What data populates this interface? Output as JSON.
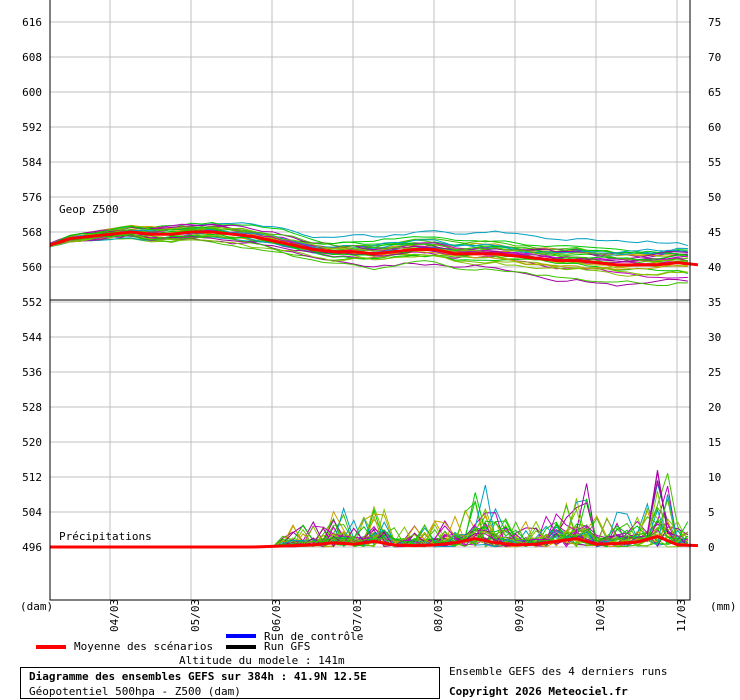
{
  "chart_data": {
    "type": "line",
    "left_axis_ticks": [
      616,
      608,
      600,
      592,
      584,
      576,
      568,
      560,
      552,
      544,
      536,
      528,
      520,
      512,
      504,
      496
    ],
    "right_axis_ticks": [
      75,
      70,
      65,
      60,
      55,
      50,
      45,
      40,
      35,
      30,
      25,
      20,
      15,
      10,
      5,
      0
    ],
    "left_unit": "(dam)",
    "right_unit": "(mm)",
    "x_ticks": [
      "04/03",
      "05/03",
      "06/03",
      "07/03",
      "08/03",
      "09/03",
      "10/03",
      "11/03"
    ],
    "geop_label": "Geop Z500",
    "precip_label": "Précipitations",
    "geop_ylim": [
      490,
      620
    ],
    "precip_ylim": [
      0,
      35
    ],
    "mean_z500": {
      "name": "Moyenne des scénarios",
      "x": [
        0,
        0.5,
        1,
        1.5,
        2,
        2.5,
        3,
        3.5,
        4,
        4.5,
        5,
        5.5,
        6,
        6.5,
        7,
        7.5,
        8,
        8.5,
        9,
        9.5,
        10,
        10.5,
        11,
        11.5,
        12,
        12.5,
        13,
        13.5,
        14,
        14.5,
        15,
        15.5,
        16
      ],
      "y": [
        565,
        566.5,
        567,
        567.5,
        568,
        567.5,
        567.5,
        568,
        568,
        567.5,
        567,
        566,
        565,
        564,
        563.5,
        563.5,
        563,
        563.5,
        564,
        564,
        563,
        563,
        563,
        562.5,
        562,
        561.5,
        561.5,
        561,
        560.5,
        560.5,
        560.5,
        561,
        560.5
      ]
    },
    "mean_precip": {
      "name": "Moyenne des scénarios",
      "x": [
        0,
        1,
        2,
        3,
        4,
        5,
        6,
        6.5,
        7,
        7.5,
        8,
        8.5,
        9,
        9.5,
        10,
        10.5,
        11,
        11.5,
        12,
        12.5,
        13,
        13.5,
        14,
        14.5,
        15,
        15.5,
        16
      ],
      "y": [
        0,
        0,
        0,
        0,
        0,
        0,
        0.2,
        0.3,
        0.6,
        0.4,
        0.8,
        0.3,
        0.2,
        0.3,
        0.6,
        1.2,
        0.6,
        0.3,
        0.4,
        0.8,
        1.2,
        0.4,
        0.5,
        0.7,
        1.5,
        0.3,
        0.2
      ]
    },
    "ensemble_colors": [
      "#00c800",
      "#40c000",
      "#c8a000",
      "#c000c0",
      "#00a0c0",
      "#a000a0",
      "#80c000"
    ],
    "legend": [
      {
        "name": "Moyenne des scénarios",
        "color": "#ff0000"
      },
      {
        "name": "Run de contrôle",
        "color": "#0000ff"
      },
      {
        "name": "Run GFS",
        "color": "#000000"
      }
    ]
  },
  "legend": {
    "mean_label": "Moyenne des scénarios",
    "control_label": "Run de contrôle",
    "gfs_label": "Run GFS",
    "altitude": "Altitude du modele : 141m"
  },
  "info": {
    "title": "Diagramme des ensembles GEFS sur 384h : 41.9N 12.5E",
    "subtitle": "Géopotentiel 500hpa - Z500 (dam)",
    "runs": "Ensemble GEFS des 4 derniers runs",
    "copyright": "Copyright 2026 Meteociel.fr"
  },
  "colors": {
    "mean": "#ff0000",
    "control": "#0000ff",
    "gfs": "#000000",
    "grid": "#c0c0c0"
  }
}
